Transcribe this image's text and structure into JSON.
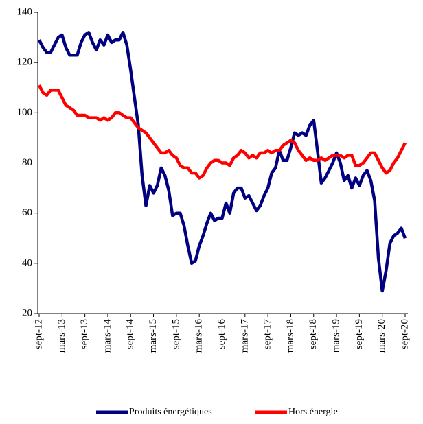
{
  "chart_data": {
    "type": "line",
    "categories": [
      "sept-12",
      null,
      null,
      null,
      null,
      null,
      "mars-13",
      null,
      null,
      null,
      null,
      null,
      "sept-13",
      null,
      null,
      null,
      null,
      null,
      "mars-14",
      null,
      null,
      null,
      null,
      null,
      "sept-14",
      null,
      null,
      null,
      null,
      null,
      "mars-15",
      null,
      null,
      null,
      null,
      null,
      "sept-15",
      null,
      null,
      null,
      null,
      null,
      "mars-16",
      null,
      null,
      null,
      null,
      null,
      "sept-16",
      null,
      null,
      null,
      null,
      null,
      "mars-17",
      null,
      null,
      null,
      null,
      null,
      "sept-17",
      null,
      null,
      null,
      null,
      null,
      "mars-18",
      null,
      null,
      null,
      null,
      null,
      "sept-18",
      null,
      null,
      null,
      null,
      null,
      "mars-19",
      null,
      null,
      null,
      null,
      null,
      "sept-19",
      null,
      null,
      null,
      null,
      null,
      "mars-20",
      null,
      null,
      null,
      null,
      null,
      "sept-20"
    ],
    "series": [
      {
        "name": "Produits énergétiques",
        "color": "#000080",
        "values": [
          129,
          126,
          124,
          124,
          127,
          130,
          131,
          126,
          123,
          123,
          123,
          128,
          131,
          132,
          128,
          125,
          129,
          127,
          131,
          128,
          129,
          129,
          132,
          127,
          117,
          106,
          95,
          75,
          63,
          71,
          68,
          71,
          78,
          75,
          69,
          59,
          60,
          60,
          55,
          47,
          40,
          41,
          47,
          51,
          56,
          60,
          57,
          58,
          58,
          64,
          60,
          68,
          70,
          70,
          66,
          67,
          64,
          61,
          63,
          67,
          70,
          76,
          78,
          85,
          81,
          81,
          86,
          92,
          91,
          92,
          91,
          95,
          97,
          85,
          72,
          74,
          77,
          80,
          84,
          80,
          73,
          75,
          70,
          74,
          71,
          75,
          77,
          73,
          65,
          42,
          29,
          37,
          48,
          51,
          52,
          54,
          50
        ]
      },
      {
        "name": "Hors énergie",
        "color": "#ff0000",
        "values": [
          111,
          108,
          107,
          109,
          109,
          109,
          106,
          103,
          102,
          101,
          99,
          99,
          99,
          98,
          98,
          98,
          97,
          98,
          97,
          98,
          100,
          100,
          99,
          98,
          98,
          96,
          94,
          93,
          92,
          90,
          88,
          86,
          84,
          84,
          85,
          83,
          82,
          79,
          78,
          78,
          76,
          76,
          74,
          75,
          78,
          80,
          81,
          81,
          80,
          80,
          79,
          82,
          83,
          85,
          84,
          82,
          83,
          82,
          84,
          84,
          85,
          84,
          85,
          85,
          87,
          88,
          89,
          88,
          85,
          83,
          81,
          82,
          81,
          81,
          82,
          81,
          82,
          83,
          83,
          83,
          82,
          83,
          83,
          79,
          79,
          80,
          82,
          84,
          84,
          81,
          78,
          76,
          77,
          80,
          82,
          85,
          88
        ]
      }
    ],
    "ylim": [
      20,
      140
    ],
    "yticks": [
      20,
      40,
      60,
      80,
      100,
      120,
      140
    ]
  }
}
